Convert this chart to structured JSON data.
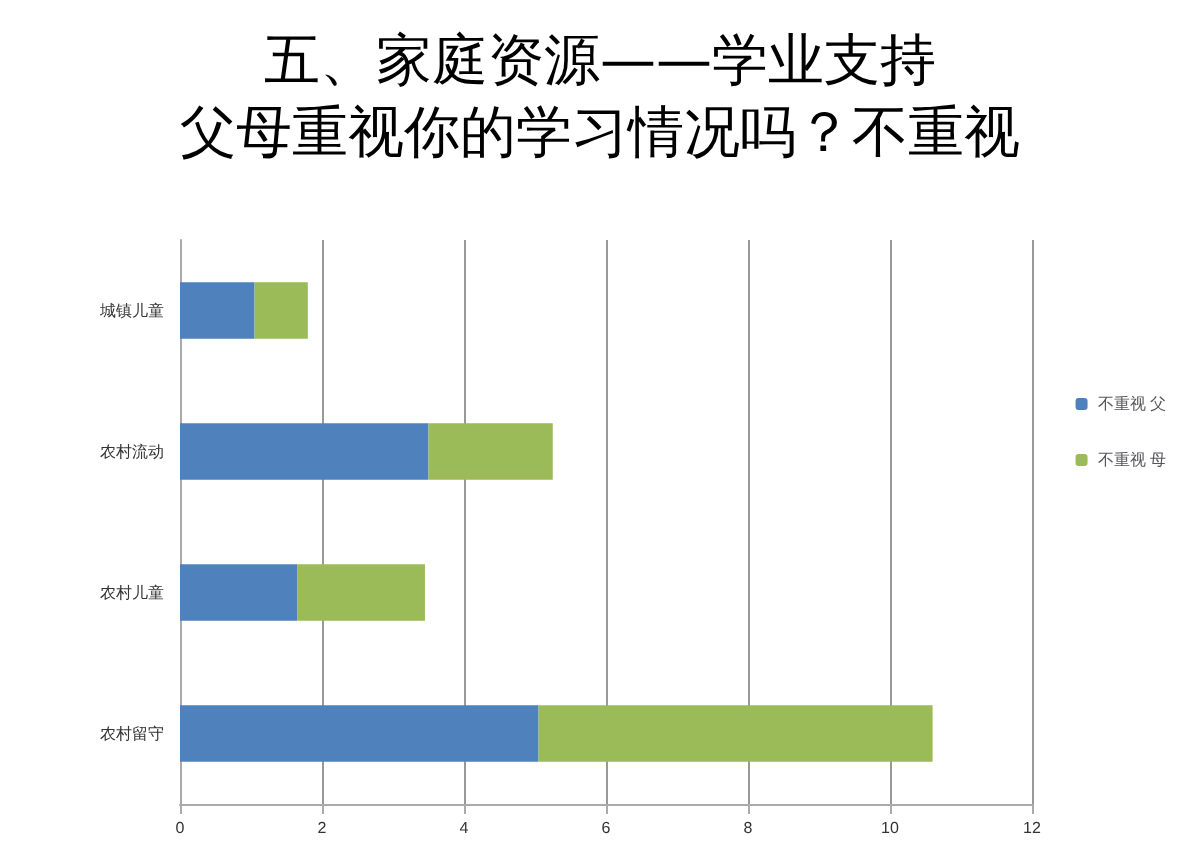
{
  "chart_data": {
    "type": "bar",
    "orientation": "horizontal",
    "stacked": true,
    "title": "五、家庭资源——学业支持",
    "subtitle": "父母重视你的学习情况吗？不重视",
    "categories": [
      "城镇儿童",
      "农村流动",
      "农村儿童",
      "农村留守"
    ],
    "series": [
      {
        "name": "不重视 父",
        "color": "#4f81bd",
        "values": [
          1.05,
          3.5,
          1.65,
          5.05
        ]
      },
      {
        "name": "不重视 母",
        "color": "#9bbb59",
        "values": [
          0.75,
          1.75,
          1.8,
          5.55
        ]
      }
    ],
    "xlim": [
      0,
      12
    ],
    "xticks": [
      0,
      2,
      4,
      6,
      8,
      10,
      12
    ],
    "grid": "x",
    "legend": "right"
  }
}
